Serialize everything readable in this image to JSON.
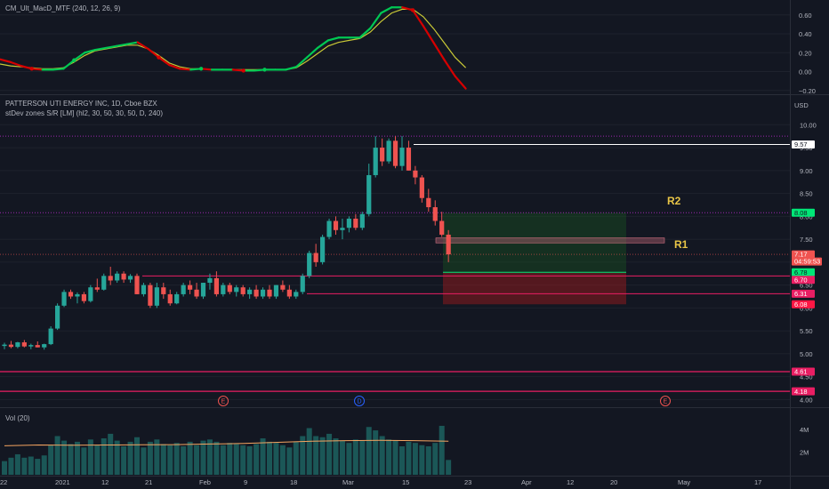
{
  "indicator_pane": {
    "legend": "CM_Ult_MacD_MTF (240, 12, 26, 9)",
    "ticks": [
      "0.60",
      "0.40",
      "0.20",
      "0.00",
      "−0.20"
    ]
  },
  "main_pane": {
    "symbol_line": "PATTERSON UTI ENERGY INC, 1D, Cboe BZX",
    "indicator_line": "stDev zones S/R [LM] (hl2, 30, 50, 30, 50, D, 240)",
    "currency": "USD",
    "ticks": [
      "10.00",
      "9.50",
      "9.00",
      "8.50",
      "8.00",
      "7.50",
      "7.00",
      "6.50",
      "6.00",
      "5.50",
      "5.00",
      "4.50",
      "4.00"
    ],
    "price_tags": [
      {
        "label": "9.57",
        "bg": "#ffffff",
        "fg": "#131722"
      },
      {
        "label": "8.08",
        "bg": "#00e676",
        "fg": "#131722"
      },
      {
        "label": "7.17",
        "bg": "#ef5350",
        "fg": "#ffffff"
      },
      {
        "label": "04:59:53",
        "bg": "#ef5350",
        "fg": "#ffffff"
      },
      {
        "label": "6.78",
        "bg": "#00e676",
        "fg": "#131722"
      },
      {
        "label": "6.70",
        "bg": "#e91e63",
        "fg": "#ffffff"
      },
      {
        "label": "6.31",
        "bg": "#e91e63",
        "fg": "#ffffff"
      },
      {
        "label": "6.08",
        "bg": "#ff1744",
        "fg": "#ffffff"
      },
      {
        "label": "4.61",
        "bg": "#e91e63",
        "fg": "#ffffff"
      },
      {
        "label": "4.18",
        "bg": "#e91e63",
        "fg": "#ffffff"
      }
    ],
    "zone_labels": [
      "R2",
      "R1"
    ],
    "event_markers": [
      {
        "label": "E",
        "color": "#ef5350"
      },
      {
        "label": "D",
        "color": "#2962ff"
      },
      {
        "label": "E",
        "color": "#ef5350"
      }
    ]
  },
  "volume_pane": {
    "legend": "Vol (20)",
    "ticks": [
      "4M",
      "2M"
    ]
  },
  "time_axis": {
    "labels": [
      "22",
      "2021",
      "12",
      "21",
      "Feb",
      "9",
      "18",
      "Mar",
      "15",
      "23",
      "Apr",
      "12",
      "20",
      "May",
      "17"
    ]
  },
  "colors": {
    "up": "#26a69a",
    "down": "#ef5350",
    "resistance_line": "#e91e63",
    "reward_zone": "#1b5e20",
    "risk_zone": "#b71c1c",
    "macd_up": "#00c853",
    "macd_down": "#d50000",
    "signal": "#c9c936",
    "volume_ma": "#f4a460"
  },
  "chart_data": {
    "type": "candlestick",
    "candles_ohlc": [
      [
        5.17,
        5.24,
        5.1,
        5.2
      ],
      [
        5.2,
        5.28,
        5.12,
        5.15
      ],
      [
        5.15,
        5.26,
        5.12,
        5.25
      ],
      [
        5.25,
        5.3,
        5.14,
        5.16
      ],
      [
        5.16,
        5.22,
        5.1,
        5.19
      ],
      [
        5.19,
        5.27,
        5.14,
        5.14
      ],
      [
        5.14,
        5.22,
        5.09,
        5.21
      ],
      [
        5.21,
        5.6,
        5.19,
        5.55
      ],
      [
        5.55,
        6.1,
        5.52,
        6.05
      ],
      [
        6.05,
        6.4,
        6.02,
        6.35
      ],
      [
        6.35,
        6.4,
        6.2,
        6.25
      ],
      [
        6.25,
        6.34,
        6.1,
        6.3
      ],
      [
        6.3,
        6.35,
        6.1,
        6.15
      ],
      [
        6.15,
        6.5,
        6.12,
        6.45
      ],
      [
        6.45,
        6.64,
        6.35,
        6.4
      ],
      [
        6.4,
        6.75,
        6.38,
        6.7
      ],
      [
        6.7,
        6.9,
        6.5,
        6.6
      ],
      [
        6.6,
        6.8,
        6.55,
        6.75
      ],
      [
        6.75,
        6.8,
        6.55,
        6.62
      ],
      [
        6.62,
        6.74,
        6.55,
        6.7
      ],
      [
        6.7,
        6.75,
        6.3,
        6.3
      ],
      [
        6.3,
        6.55,
        6.25,
        6.5
      ],
      [
        6.5,
        6.55,
        6.0,
        6.05
      ],
      [
        6.05,
        6.55,
        6.0,
        6.45
      ],
      [
        6.45,
        6.55,
        6.2,
        6.3
      ],
      [
        6.3,
        6.4,
        6.05,
        6.1
      ],
      [
        6.1,
        6.35,
        6.08,
        6.3
      ],
      [
        6.3,
        6.55,
        6.25,
        6.5
      ],
      [
        6.5,
        6.6,
        6.3,
        6.4
      ],
      [
        6.4,
        6.55,
        6.2,
        6.25
      ],
      [
        6.25,
        6.55,
        6.2,
        6.55
      ],
      [
        6.55,
        6.75,
        6.4,
        6.65
      ],
      [
        6.65,
        6.8,
        6.25,
        6.3
      ],
      [
        6.3,
        6.55,
        6.25,
        6.5
      ],
      [
        6.5,
        6.55,
        6.3,
        6.35
      ],
      [
        6.35,
        6.5,
        6.25,
        6.45
      ],
      [
        6.45,
        6.5,
        6.25,
        6.3
      ],
      [
        6.3,
        6.45,
        6.2,
        6.4
      ],
      [
        6.4,
        6.5,
        6.2,
        6.25
      ],
      [
        6.25,
        6.45,
        6.2,
        6.4
      ],
      [
        6.4,
        6.5,
        6.2,
        6.25
      ],
      [
        6.25,
        6.5,
        6.2,
        6.5
      ],
      [
        6.5,
        6.6,
        6.35,
        6.4
      ],
      [
        6.4,
        6.5,
        6.2,
        6.25
      ],
      [
        6.25,
        6.4,
        6.2,
        6.35
      ],
      [
        6.35,
        6.75,
        6.3,
        6.7
      ],
      [
        6.7,
        7.25,
        6.65,
        7.2
      ],
      [
        7.2,
        7.4,
        6.9,
        7.0
      ],
      [
        7.0,
        7.6,
        6.95,
        7.55
      ],
      [
        7.55,
        7.95,
        7.5,
        7.9
      ],
      [
        7.9,
        8.0,
        7.6,
        7.7
      ],
      [
        7.7,
        7.95,
        7.5,
        7.75
      ],
      [
        7.75,
        8.0,
        7.65,
        7.95
      ],
      [
        7.95,
        8.05,
        7.7,
        7.75
      ],
      [
        7.75,
        8.1,
        7.7,
        8.05
      ],
      [
        8.05,
        9.15,
        8.0,
        8.9
      ],
      [
        8.9,
        9.75,
        8.85,
        9.5
      ],
      [
        9.5,
        9.7,
        9.1,
        9.2
      ],
      [
        9.2,
        9.7,
        9.15,
        9.65
      ],
      [
        9.65,
        9.75,
        9.05,
        9.1
      ],
      [
        9.1,
        9.75,
        9.0,
        9.5
      ],
      [
        9.5,
        9.65,
        9.0,
        9.0
      ],
      [
        9.0,
        9.1,
        8.7,
        8.85
      ],
      [
        8.85,
        8.9,
        8.3,
        8.4
      ],
      [
        8.4,
        8.6,
        8.1,
        8.2
      ],
      [
        8.2,
        8.35,
        7.8,
        7.9
      ],
      [
        7.9,
        8.1,
        7.55,
        7.6
      ],
      [
        7.6,
        7.7,
        7.0,
        7.17
      ]
    ],
    "volume_millions": [
      1.2,
      1.5,
      1.8,
      1.5,
      1.6,
      1.4,
      1.7,
      2.6,
      3.4,
      3.0,
      2.7,
      2.9,
      2.4,
      3.1,
      2.6,
      3.2,
      3.6,
      3.0,
      2.5,
      2.9,
      3.3,
      2.4,
      2.9,
      3.1,
      2.7,
      2.6,
      2.8,
      2.5,
      2.9,
      2.6,
      3.0,
      3.1,
      2.9,
      2.6,
      2.8,
      2.7,
      2.6,
      2.5,
      2.7,
      3.2,
      2.9,
      2.8,
      2.6,
      2.4,
      2.9,
      3.4,
      4.1,
      3.4,
      3.3,
      3.6,
      3.2,
      3.0,
      2.8,
      3.1,
      3.0,
      4.2,
      3.9,
      3.4,
      3.1,
      3.0,
      2.5,
      2.9,
      2.8,
      2.6,
      2.5,
      2.8,
      4.3,
      1.3
    ],
    "volume_ma_millions": [
      2.55,
      2.62,
      2.6,
      2.62,
      2.63,
      2.65,
      2.7,
      2.75,
      2.85,
      2.95,
      3.0,
      3.02,
      3.0,
      2.95
    ],
    "macd_values": [
      0.13,
      0.1,
      0.06,
      0.03,
      0.02,
      0.02,
      0.03,
      0.12,
      0.2,
      0.23,
      0.25,
      0.27,
      0.29,
      0.31,
      0.24,
      0.15,
      0.07,
      0.03,
      0.02,
      0.03,
      0.02,
      0.02,
      0.02,
      0.01,
      0.01,
      0.02,
      0.02,
      0.02,
      0.05,
      0.15,
      0.25,
      0.33,
      0.36,
      0.36,
      0.36,
      0.46,
      0.62,
      0.68,
      0.68,
      0.65,
      0.48,
      0.3,
      0.12,
      -0.05,
      -0.18
    ],
    "signal_values": [
      0.08,
      0.06,
      0.05,
      0.04,
      0.03,
      0.03,
      0.04,
      0.1,
      0.17,
      0.22,
      0.24,
      0.26,
      0.28,
      0.28,
      0.24,
      0.17,
      0.09,
      0.05,
      0.03,
      0.03,
      0.02,
      0.02,
      0.02,
      0.02,
      0.02,
      0.02,
      0.02,
      0.02,
      0.04,
      0.11,
      0.19,
      0.27,
      0.31,
      0.33,
      0.35,
      0.42,
      0.53,
      0.62,
      0.66,
      0.66,
      0.58,
      0.45,
      0.3,
      0.15,
      0.04
    ],
    "levels": [
      9.57,
      8.08,
      6.78,
      6.7,
      6.31,
      6.08,
      4.61,
      4.18
    ],
    "last_price": 7.17,
    "price_range": [
      3.95,
      10.2
    ],
    "macd_range": [
      -0.24,
      0.72
    ],
    "volume_range_millions": [
      0,
      5
    ]
  }
}
